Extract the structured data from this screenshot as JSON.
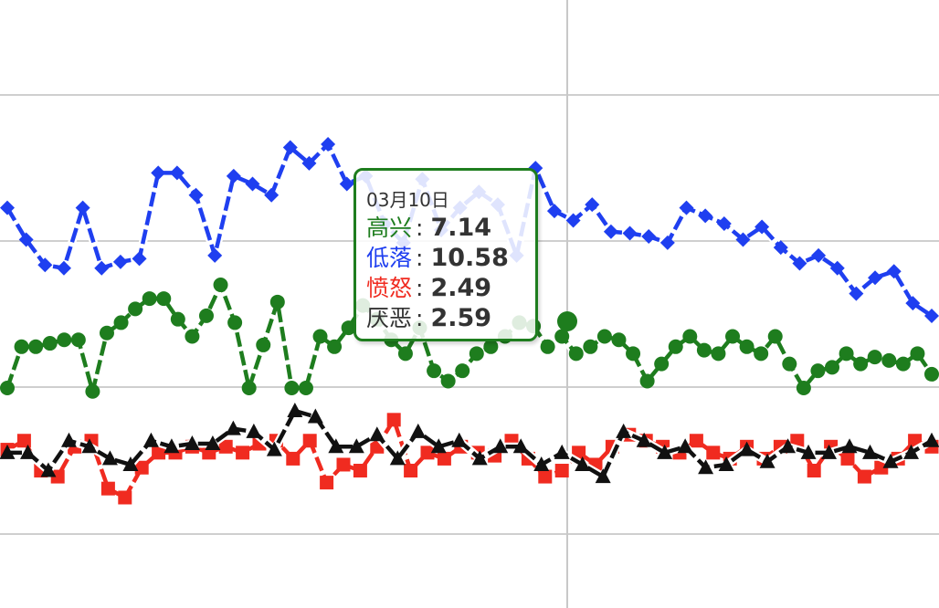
{
  "chart_data": {
    "type": "line",
    "series": [
      {
        "name": "高兴",
        "color": "#1e7d1e",
        "marker": "circle",
        "values": [
          7.0,
          7.24,
          7.24,
          7.26,
          7.28,
          7.28,
          6.98,
          7.32,
          7.38,
          7.46,
          7.52,
          7.52,
          7.4,
          7.3,
          7.42,
          7.6,
          7.38,
          7.0,
          7.25,
          7.5,
          7.0,
          7.0,
          7.3,
          7.24,
          7.35,
          7.48,
          7.4,
          7.28,
          7.2,
          7.35,
          7.1,
          7.04,
          7.1,
          7.2,
          7.24,
          7.3,
          7.38,
          7.36,
          7.24,
          7.3,
          7.2,
          7.24,
          7.3,
          7.28,
          7.2,
          7.04,
          7.14,
          7.24,
          7.3,
          7.22,
          7.2,
          7.3,
          7.24,
          7.2,
          7.3,
          7.14,
          7.0,
          7.1,
          7.12,
          7.2,
          7.14,
          7.18,
          7.16,
          7.14,
          7.2,
          7.08
        ]
      },
      {
        "name": "低落",
        "color": "#1f3ff0",
        "marker": "diamond",
        "values": [
          10.8,
          10.6,
          10.44,
          10.42,
          10.8,
          10.42,
          10.46,
          10.48,
          11.02,
          11.02,
          10.88,
          10.5,
          11.0,
          10.95,
          10.88,
          11.18,
          11.08,
          11.2,
          10.95,
          11.0,
          10.7,
          10.58,
          10.98,
          10.66,
          10.8,
          10.9,
          10.82,
          10.5,
          11.05,
          10.78,
          10.72,
          10.82,
          10.65,
          10.64,
          10.62,
          10.58,
          10.8,
          10.75,
          10.7,
          10.6,
          10.68,
          10.55,
          10.45,
          10.5,
          10.42,
          10.26,
          10.36,
          10.4,
          10.2,
          10.12
        ]
      },
      {
        "name": "愤怒",
        "color": "#f02b20",
        "marker": "square",
        "values": [
          2.59,
          2.62,
          2.52,
          2.5,
          2.6,
          2.62,
          2.46,
          2.43,
          2.53,
          2.58,
          2.58,
          2.6,
          2.58,
          2.6,
          2.58,
          2.61,
          2.62,
          2.56,
          2.62,
          2.48,
          2.54,
          2.52,
          2.6,
          2.69,
          2.52,
          2.58,
          2.56,
          2.6,
          2.58,
          2.57,
          2.62,
          2.56,
          2.5,
          2.52,
          2.58,
          2.54,
          2.6,
          2.64,
          2.62,
          2.6,
          2.58,
          2.62,
          2.58,
          2.56,
          2.6,
          2.56,
          2.6,
          2.62,
          2.52,
          2.6,
          2.56,
          2.5,
          2.53,
          2.56,
          2.62,
          2.6
        ]
      },
      {
        "name": "厌恶",
        "color": "#111111",
        "marker": "triangle",
        "values": [
          2.58,
          2.58,
          2.52,
          2.62,
          2.6,
          2.56,
          2.54,
          2.62,
          2.6,
          2.61,
          2.61,
          2.66,
          2.65,
          2.59,
          2.72,
          2.7,
          2.6,
          2.6,
          2.64,
          2.56,
          2.65,
          2.6,
          2.62,
          2.56,
          2.6,
          2.6,
          2.54,
          2.58,
          2.54,
          2.5,
          2.65,
          2.62,
          2.58,
          2.6,
          2.53,
          2.54,
          2.59,
          2.55,
          2.6,
          2.58,
          2.58,
          2.6,
          2.58,
          2.55,
          2.58,
          2.62
        ]
      }
    ],
    "ylim": [
      0,
      12.5
    ],
    "grid": true,
    "tooltip": {
      "date": "03月10日",
      "rows": [
        {
          "name": "高兴",
          "value": "7.14",
          "color": "#1e7d1e"
        },
        {
          "name": "低落",
          "value": "10.58",
          "color": "#1f3ff0"
        },
        {
          "name": "愤怒",
          "value": "2.49",
          "color": "#f02b20"
        },
        {
          "name": "厌恶",
          "value": "2.59",
          "color": "#333333"
        }
      ],
      "border_color": "#1e7d1e"
    }
  }
}
